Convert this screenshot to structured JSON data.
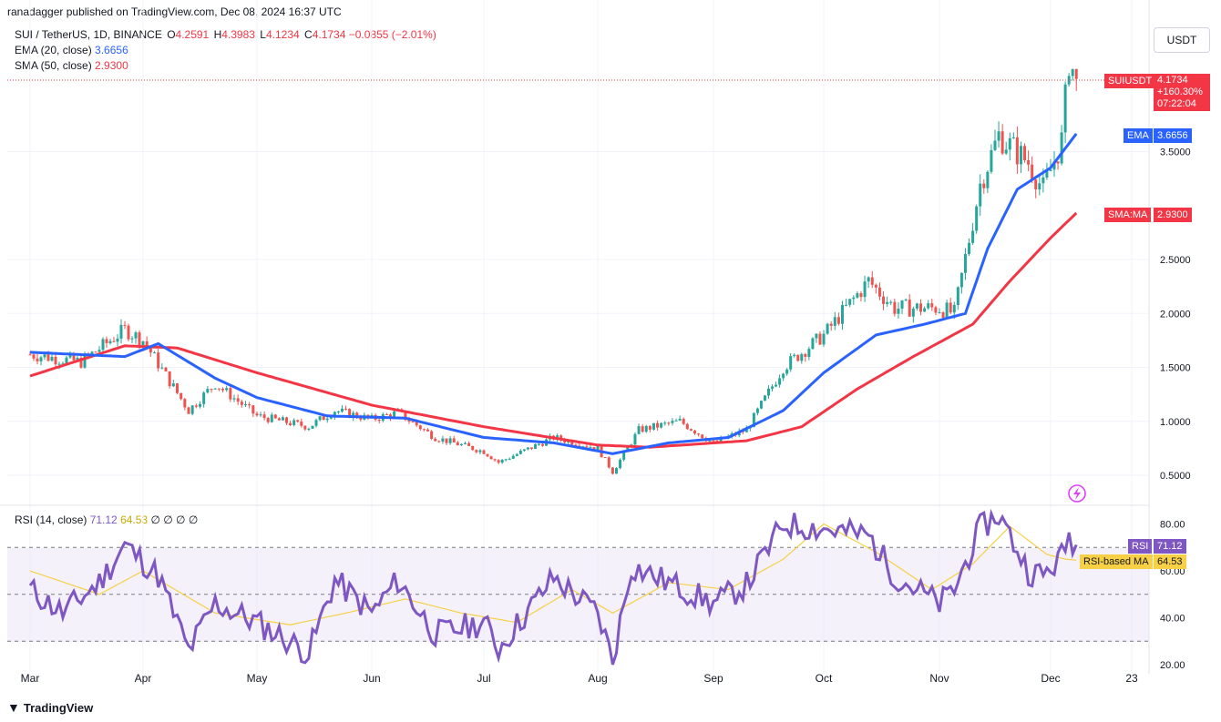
{
  "header": {
    "published": "ranadagger published on TradingView.com, Dec 08, 2024 16:37 UTC"
  },
  "legend": {
    "symbol": "SUI / TetherUS, 1D, BINANCE",
    "o_label": "O",
    "o": "4.2591",
    "h_label": "H",
    "h": "4.3983",
    "l_label": "L",
    "l": "4.1234",
    "c_label": "C",
    "c": "4.1734",
    "change": "−0.0855 (−2.01%)",
    "ema_label": "EMA (20, close)",
    "ema_value": "3.6656",
    "sma_label": "SMA (50, close)",
    "sma_value": "2.9300",
    "rsi_label": "RSI (14, close)",
    "rsi_value": "71.12",
    "rsi_ma_value": "64.53",
    "rsi_extra": "∅ ∅ ∅ ∅"
  },
  "currency_button": "USDT",
  "badges": {
    "symbol": "SUIUSDT",
    "price": "4.1734",
    "pct": "+160.30%",
    "countdown": "07:22:04",
    "ema_name": "EMA",
    "ema_value": "3.6656",
    "sma_name": "SMA:MA",
    "sma_value": "2.9300",
    "rsi_name": "RSI",
    "rsi_value": "71.12",
    "rsima_name": "RSI-based MA",
    "rsima_value": "64.53"
  },
  "colors": {
    "up": "#26a69a",
    "down": "#ef5350",
    "ema": "#2962ff",
    "sma": "#f23645",
    "rsi": "#7e57c2",
    "rsi_ma": "#f7d046",
    "rsi_band": "#ede7f6",
    "grid": "#f0f3fa"
  },
  "footer": {
    "brand": "TradingView"
  },
  "chart_data": [
    {
      "type": "candlestick",
      "title": "SUI / TetherUS, 1D, BINANCE",
      "y_ticks": [
        "0.5000",
        "1.0000",
        "1.5000",
        "2.0000",
        "2.5000",
        "3.5000"
      ],
      "ylim": [
        0.45,
        4.45
      ],
      "x_ticks": [
        "Mar",
        "Apr",
        "May",
        "Jun",
        "Jul",
        "Aug",
        "Sep",
        "Oct",
        "Nov",
        "Dec",
        "23"
      ],
      "series": [
        {
          "name": "SUIUSDT",
          "values": "daily OHLC, Mar 2024 – Dec 08 2024"
        },
        {
          "name": "EMA (20, close)",
          "values": "3.6656"
        },
        {
          "name": "SMA (50, close)",
          "values": "2.9300"
        }
      ],
      "price_points": [
        [
          "Mar 01",
          1.62
        ],
        [
          "Mar 15",
          1.55
        ],
        [
          "Mar 27",
          1.85
        ],
        [
          "Apr 01",
          1.75
        ],
        [
          "Apr 13",
          1.1
        ],
        [
          "Apr 20",
          1.35
        ],
        [
          "May 01",
          1.05
        ],
        [
          "May 15",
          0.95
        ],
        [
          "May 22",
          1.1
        ],
        [
          "Jun 01",
          1.02
        ],
        [
          "Jun 08",
          1.08
        ],
        [
          "Jun 18",
          0.85
        ],
        [
          "Jul 01",
          0.72
        ],
        [
          "Jul 05",
          0.62
        ],
        [
          "Jul 20",
          0.85
        ],
        [
          "Aug 01",
          0.75
        ],
        [
          "Aug 05",
          0.53
        ],
        [
          "Aug 12",
          0.92
        ],
        [
          "Aug 23",
          1.0
        ],
        [
          "Sep 01",
          0.8
        ],
        [
          "Sep 10",
          0.92
        ],
        [
          "Sep 20",
          1.5
        ],
        [
          "Oct 01",
          1.8
        ],
        [
          "Oct 13",
          2.3
        ],
        [
          "Oct 20",
          2.05
        ],
        [
          "Nov 01",
          2.05
        ],
        [
          "Nov 05",
          2.0
        ],
        [
          "Nov 12",
          3.2
        ],
        [
          "Nov 17",
          3.65
        ],
        [
          "Nov 25",
          3.4
        ],
        [
          "Nov 29",
          3.15
        ],
        [
          "Dec 04",
          3.6
        ],
        [
          "Dec 06",
          4.35
        ],
        [
          "Dec 08",
          4.1734
        ]
      ],
      "ema_points": [
        [
          "Mar 01",
          1.64
        ],
        [
          "Mar 27",
          1.6
        ],
        [
          "Apr 05",
          1.72
        ],
        [
          "Apr 20",
          1.4
        ],
        [
          "May 01",
          1.22
        ],
        [
          "May 20",
          1.05
        ],
        [
          "Jun 10",
          1.03
        ],
        [
          "Jul 01",
          0.85
        ],
        [
          "Jul 20",
          0.8
        ],
        [
          "Aug 05",
          0.7
        ],
        [
          "Aug 20",
          0.8
        ],
        [
          "Sep 05",
          0.85
        ],
        [
          "Sep 20",
          1.1
        ],
        [
          "Oct 01",
          1.45
        ],
        [
          "Oct 15",
          1.8
        ],
        [
          "Oct 28",
          1.9
        ],
        [
          "Nov 08",
          2.0
        ],
        [
          "Nov 14",
          2.6
        ],
        [
          "Nov 22",
          3.15
        ],
        [
          "Dec 01",
          3.35
        ],
        [
          "Dec 08",
          3.6656
        ]
      ],
      "sma_points": [
        [
          "Mar 01",
          1.42
        ],
        [
          "Mar 27",
          1.7
        ],
        [
          "Apr 10",
          1.68
        ],
        [
          "May 01",
          1.45
        ],
        [
          "Jun 01",
          1.15
        ],
        [
          "Jul 01",
          0.95
        ],
        [
          "Aug 01",
          0.78
        ],
        [
          "Aug 15",
          0.76
        ],
        [
          "Sep 10",
          0.82
        ],
        [
          "Sep 25",
          0.95
        ],
        [
          "Oct 10",
          1.3
        ],
        [
          "Oct 25",
          1.6
        ],
        [
          "Nov 10",
          1.9
        ],
        [
          "Nov 20",
          2.3
        ],
        [
          "Dec 01",
          2.7
        ],
        [
          "Dec 08",
          2.93
        ]
      ]
    },
    {
      "type": "line",
      "title": "RSI (14, close)",
      "y_ticks": [
        "20.00",
        "40.00",
        "60.00",
        "80.00"
      ],
      "ylim": [
        17,
        85
      ],
      "bands": [
        30,
        50,
        70
      ],
      "series": [
        {
          "name": "RSI",
          "last": 71.12
        },
        {
          "name": "RSI-based MA",
          "last": 64.53
        }
      ],
      "rsi_points": [
        [
          "Mar 01",
          52
        ],
        [
          "Mar 10",
          42
        ],
        [
          "Mar 20",
          55
        ],
        [
          "Mar 27",
          71
        ],
        [
          "Apr 05",
          58
        ],
        [
          "Apr 13",
          26
        ],
        [
          "Apr 20",
          46
        ],
        [
          "May 01",
          38
        ],
        [
          "May 15",
          25
        ],
        [
          "May 22",
          56
        ],
        [
          "Jun 01",
          42
        ],
        [
          "Jun 08",
          56
        ],
        [
          "Jun 18",
          33
        ],
        [
          "Jul 01",
          38
        ],
        [
          "Jul 05",
          27
        ],
        [
          "Jul 20",
          57
        ],
        [
          "Aug 01",
          42
        ],
        [
          "Aug 05",
          22
        ],
        [
          "Aug 10",
          62
        ],
        [
          "Aug 20",
          55
        ],
        [
          "Sep 01",
          46
        ],
        [
          "Sep 10",
          54
        ],
        [
          "Sep 20",
          80
        ],
        [
          "Oct 01",
          78
        ],
        [
          "Oct 13",
          75
        ],
        [
          "Oct 20",
          58
        ],
        [
          "Nov 01",
          46
        ],
        [
          "Nov 05",
          52
        ],
        [
          "Nov 12",
          78
        ],
        [
          "Nov 17",
          84
        ],
        [
          "Nov 25",
          60
        ],
        [
          "Nov 29",
          58
        ],
        [
          "Dec 04",
          66
        ],
        [
          "Dec 06",
          75
        ],
        [
          "Dec 08",
          71.12
        ]
      ],
      "rsi_ma_points": [
        [
          "Mar 01",
          60
        ],
        [
          "Mar 20",
          50
        ],
        [
          "Apr 01",
          60
        ],
        [
          "Apr 20",
          42
        ],
        [
          "May 10",
          37
        ],
        [
          "May 25",
          42
        ],
        [
          "Jun 10",
          48
        ],
        [
          "Jun 25",
          42
        ],
        [
          "Jul 10",
          38
        ],
        [
          "Jul 25",
          52
        ],
        [
          "Aug 05",
          42
        ],
        [
          "Aug 20",
          55
        ],
        [
          "Sep 05",
          52
        ],
        [
          "Sep 20",
          65
        ],
        [
          "Oct 01",
          80
        ],
        [
          "Oct 15",
          68
        ],
        [
          "Oct 30",
          52
        ],
        [
          "Nov 10",
          63
        ],
        [
          "Nov 20",
          79
        ],
        [
          "Nov 30",
          67
        ],
        [
          "Dec 05",
          65
        ],
        [
          "Dec 08",
          64.53
        ]
      ]
    }
  ]
}
